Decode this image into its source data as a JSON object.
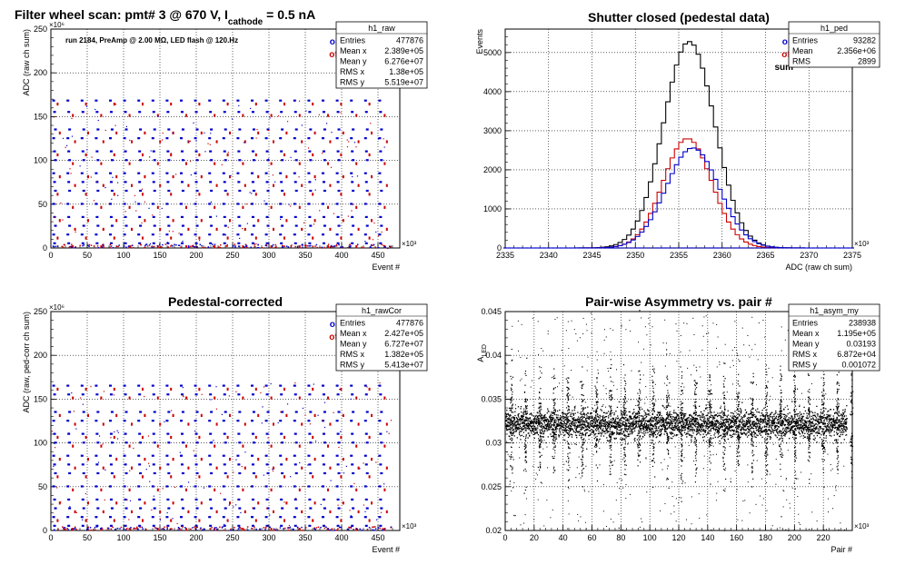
{
  "chart_data": [
    {
      "id": "raw",
      "type": "scatter",
      "title_parts": [
        "Filter wheel scan: pmt#   3 @   670 V, I",
        "cathode",
        " = 0.5 nA"
      ],
      "annotation": "run 2184, PreAmp @ 2.00 MΩ, LED flash @  120.Hz",
      "xlabel": "Event #",
      "ylabel": "ADC (raw ch sum)",
      "x_multiplier": "×10³",
      "y_multiplier": "×10⁶",
      "xlim": [
        0,
        480
      ],
      "ylim": [
        0,
        250
      ],
      "xticks": [
        0,
        50,
        100,
        150,
        200,
        250,
        300,
        350,
        400,
        450
      ],
      "yticks": [
        0,
        50,
        100,
        150,
        200,
        250
      ],
      "grid": true,
      "legend": [
        "on",
        "off"
      ],
      "legend_colors": [
        "#0000cc",
        "#cc0000"
      ],
      "stats": {
        "name": "h1_raw",
        "rows": [
          [
            "Entries",
            "477876"
          ],
          [
            "Mean x",
            "2.389e+05"
          ],
          [
            "Mean y",
            "6.276e+07"
          ],
          [
            "RMS x",
            "1.38e+05"
          ],
          [
            "RMS y",
            "5.519e+07"
          ]
        ]
      },
      "levels": [
        168,
        155,
        135,
        125,
        110,
        100,
        85,
        75,
        65,
        50,
        35,
        25,
        15,
        5
      ],
      "step_period": 19.5,
      "xmax_data": 455
    },
    {
      "id": "ped",
      "type": "line",
      "title": "Shutter closed (pedestal data)",
      "xlabel": "ADC (raw ch sum)",
      "ylabel": "Events",
      "x_multiplier": "×10³",
      "xlim": [
        2335,
        2375
      ],
      "ylim": [
        0,
        5600
      ],
      "xticks": [
        2335,
        2340,
        2345,
        2350,
        2355,
        2360,
        2365,
        2370,
        2375
      ],
      "yticks": [
        0,
        1000,
        2000,
        3000,
        4000,
        5000
      ],
      "grid": true,
      "legend": [
        "on",
        "off",
        "sum"
      ],
      "legend_colors": [
        "#0000cc",
        "#cc0000",
        "#000000"
      ],
      "stats": {
        "name": "h1_ped",
        "rows": [
          [
            "Entries",
            "93282"
          ],
          [
            "Mean",
            "2.356e+06"
          ],
          [
            "RMS",
            "2899"
          ]
        ]
      },
      "series": [
        {
          "name": "sum",
          "color": "#000000",
          "mu": 2356.2,
          "sigma": 2.95,
          "peak": 5280
        },
        {
          "name": "off",
          "color": "#cc0000",
          "mu": 2356.0,
          "sigma": 2.8,
          "peak": 2800
        },
        {
          "name": "on",
          "color": "#0000cc",
          "mu": 2356.6,
          "sigma": 3.05,
          "peak": 2560
        }
      ]
    },
    {
      "id": "rawcor",
      "type": "scatter",
      "title": "Pedestal-corrected",
      "xlabel": "Event #",
      "ylabel": "ADC (raw, ped-corr ch sum)",
      "x_multiplier": "×10³",
      "y_multiplier": "×10⁶",
      "xlim": [
        0,
        480
      ],
      "ylim": [
        0,
        250
      ],
      "xticks": [
        0,
        50,
        100,
        150,
        200,
        250,
        300,
        350,
        400,
        450
      ],
      "yticks": [
        0,
        50,
        100,
        150,
        200,
        250
      ],
      "grid": true,
      "legend": [
        "on",
        "off"
      ],
      "legend_colors": [
        "#0000cc",
        "#cc0000"
      ],
      "stats": {
        "name": "h1_rawCor",
        "rows": [
          [
            "Entries",
            "477876"
          ],
          [
            "Mean x",
            "2.427e+05"
          ],
          [
            "Mean y",
            "6.727e+07"
          ],
          [
            "RMS x",
            "1.382e+05"
          ],
          [
            "RMS y",
            "5.413e+07"
          ]
        ]
      },
      "levels": [
        165,
        155,
        135,
        125,
        110,
        100,
        85,
        75,
        65,
        50,
        35,
        25,
        15,
        5
      ],
      "step_period": 19.5,
      "xmax_data": 455
    },
    {
      "id": "asym",
      "type": "scatter",
      "title": "Pair-wise Asymmetry vs. pair #",
      "xlabel": "Pair #",
      "ylabel_main": "A",
      "ylabel_sub": "LED",
      "x_multiplier": "×10³",
      "xlim": [
        0,
        240
      ],
      "ylim": [
        0.02,
        0.045
      ],
      "xticks": [
        0,
        20,
        40,
        60,
        80,
        100,
        120,
        140,
        160,
        180,
        200,
        220
      ],
      "yticks": [
        0.02,
        0.025,
        0.03,
        0.035,
        0.04,
        0.045
      ],
      "grid": true,
      "stats": {
        "name": "h1_asym_my",
        "rows": [
          [
            "Entries",
            "238938"
          ],
          [
            "Mean x",
            "1.195e+05"
          ],
          [
            "Mean y",
            "0.03193"
          ],
          [
            "RMS x",
            "6.872e+04"
          ],
          [
            "RMS y",
            "0.001072"
          ]
        ]
      },
      "band_center": 0.0322,
      "spike_period": 9.8,
      "xmax_data": 236
    }
  ]
}
